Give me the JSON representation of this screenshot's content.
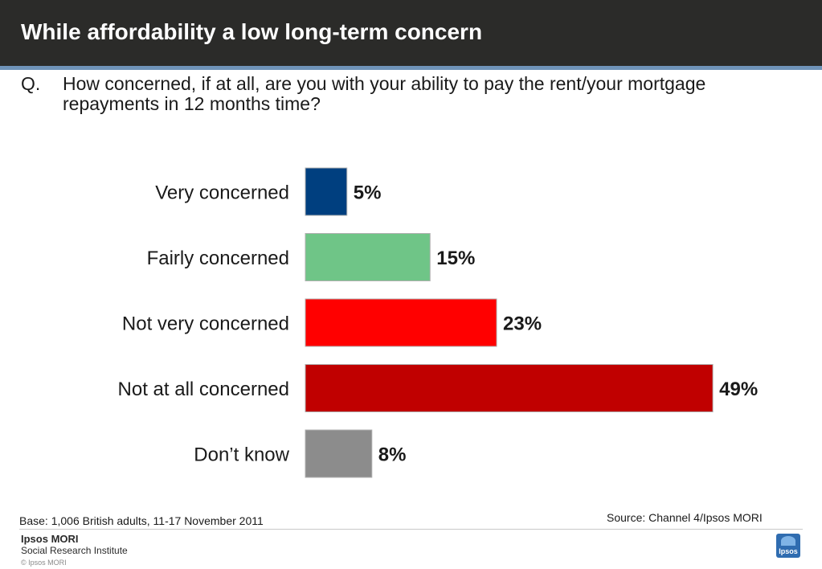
{
  "header": {
    "title": "While affordability a low long-term concern"
  },
  "question": {
    "prefix": "Q.",
    "text": "How concerned, if at all, are you with your ability to pay the rent/your mortgage repayments in 12 months time?"
  },
  "chart_data": {
    "type": "bar",
    "orientation": "horizontal",
    "categories": [
      "Very concerned",
      "Fairly concerned",
      "Not very concerned",
      "Not at all concerned",
      "Don’t know"
    ],
    "values": [
      5,
      15,
      23,
      49,
      8
    ],
    "value_labels": [
      "5%",
      "15%",
      "23%",
      "49%",
      "8%"
    ],
    "colors": [
      "#003f7f",
      "#6fc587",
      "#ff0000",
      "#c00000",
      "#8c8c8c"
    ],
    "unit": "%",
    "grid": false,
    "legend": "none"
  },
  "footer": {
    "base": "Base: 1,006 British adults, 11-17 November 2011",
    "source": "Source: Channel 4/Ipsos MORI",
    "brand_name": "Ipsos MORI",
    "brand_sub": "Social Research Institute",
    "copyright": "© Ipsos MORI",
    "logo_text": "Ipsos"
  }
}
